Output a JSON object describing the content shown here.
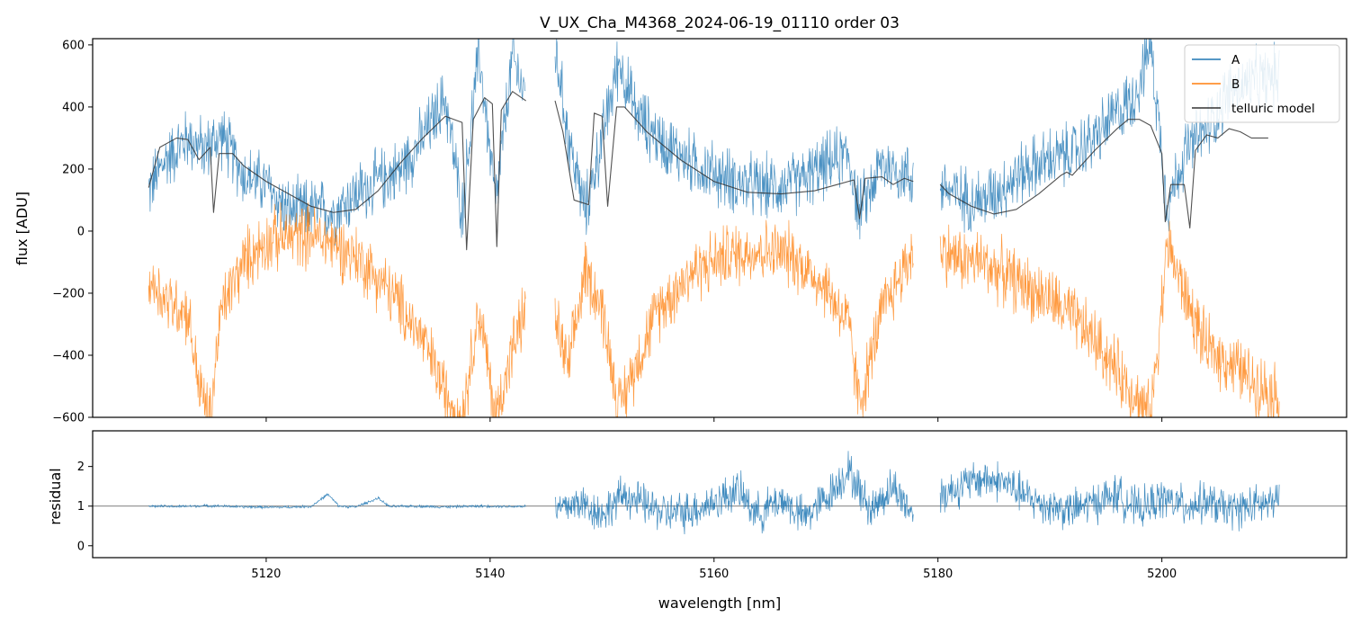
{
  "chart_data": [
    {
      "type": "line",
      "panel": "top",
      "title": "V_UX_Cha_M4368_2024-06-19_01110  order 03",
      "xlabel": "",
      "ylabel": "flux [ADU]",
      "xlim": [
        5104.5,
        5216.5
      ],
      "ylim": [
        -600,
        620
      ],
      "yticks": [
        -600,
        -400,
        -200,
        0,
        200,
        400,
        600
      ],
      "ytick_labels": [
        "−600",
        "−400",
        "−200",
        "0",
        "200",
        "400",
        "600"
      ],
      "xticks": [
        5120,
        5140,
        5160,
        5180,
        5200
      ],
      "legend": "top-right",
      "grid": false,
      "series": [
        {
          "name": "A",
          "color": "#1f77b4",
          "segments": [
            {
              "x": [
                5109.5,
                5111,
                5113,
                5114.5,
                5116,
                5118,
                5120,
                5122,
                5124,
                5126,
                5128,
                5130,
                5132,
                5134,
                5136,
                5137.5,
                5139,
                5140.5,
                5142,
                5143.2
              ],
              "y": [
                130,
                230,
                300,
                260,
                310,
                180,
                150,
                60,
                70,
                60,
                120,
                160,
                200,
                300,
                430,
                60,
                580,
                90,
                560,
                430
              ]
            },
            {
              "x": [
                5145.8,
                5147,
                5148.5,
                5150,
                5151.5,
                5153,
                5155,
                5158,
                5161,
                5164,
                5167,
                5170,
                5172,
                5173,
                5175,
                5177.8
              ],
              "y": [
                590,
                300,
                60,
                300,
                550,
                380,
                300,
                220,
                170,
                140,
                150,
                210,
                250,
                60,
                220,
                170
              ]
            },
            {
              "x": [
                5180.2,
                5182,
                5184,
                5186,
                5188,
                5190,
                5192,
                5194,
                5196,
                5197.5,
                5199,
                5200.5,
                5202,
                5204,
                5206,
                5208,
                5210.5
              ],
              "y": [
                150,
                110,
                100,
                150,
                200,
                230,
                250,
                300,
                380,
                430,
                600,
                80,
                250,
                330,
                450,
                480,
                500
              ]
            }
          ]
        },
        {
          "name": "B",
          "color": "#ff7f0e",
          "segments": [
            {
              "x": [
                5109.5,
                5111,
                5113,
                5114,
                5115,
                5116,
                5118,
                5120,
                5122,
                5124,
                5126,
                5128,
                5130,
                5132,
                5134,
                5136,
                5137.5,
                5139,
                5140.5,
                5142,
                5143.2
              ],
              "y": [
                -150,
                -220,
                -260,
                -500,
                -600,
                -250,
                -100,
                -30,
                -20,
                -10,
                -40,
                -80,
                -150,
                -240,
                -350,
                -520,
                -600,
                -250,
                -600,
                -380,
                -250
              ]
            },
            {
              "x": [
                5145.8,
                5147,
                5148.5,
                5150,
                5151.5,
                5153,
                5155,
                5158,
                5161,
                5164,
                5167,
                5170,
                5172,
                5173,
                5175,
                5177.8
              ],
              "y": [
                -280,
                -450,
                -120,
                -250,
                -570,
                -430,
                -250,
                -130,
                -80,
                -60,
                -80,
                -180,
                -300,
                -560,
                -260,
                -60
              ]
            },
            {
              "x": [
                5180.2,
                5182,
                5184,
                5186,
                5188,
                5190,
                5192,
                5194,
                5196,
                5197.5,
                5199,
                5200.5,
                5202,
                5204,
                5206,
                5208,
                5210.5
              ],
              "y": [
                -60,
                -90,
                -100,
                -140,
                -180,
                -220,
                -280,
                -350,
                -450,
                -520,
                -600,
                -40,
                -200,
                -380,
                -420,
                -480,
                -530
              ]
            }
          ]
        },
        {
          "name": "telluric model",
          "color": "#333333",
          "segments": [
            {
              "x": [
                5109.5,
                5110.5,
                5112,
                5113,
                5114,
                5115,
                5115.3,
                5115.8,
                5117,
                5118,
                5120,
                5122,
                5123.5,
                5124,
                5126,
                5128,
                5130,
                5132,
                5134,
                5136,
                5137.5,
                5137.9,
                5138.5,
                5139.5,
                5140.2,
                5140.6,
                5141,
                5142,
                5143.2
              ],
              "y": [
                140,
                270,
                300,
                295,
                230,
                270,
                60,
                250,
                250,
                210,
                160,
                120,
                90,
                80,
                60,
                70,
                130,
                220,
                300,
                370,
                350,
                -60,
                360,
                430,
                410,
                -50,
                390,
                450,
                420
              ]
            },
            {
              "x": [
                5145.8,
                5146.5,
                5147.5,
                5148.8,
                5149.3,
                5150,
                5150.5,
                5151.3,
                5152,
                5154,
                5157,
                5160,
                5163,
                5166,
                5169,
                5171,
                5172.5,
                5173,
                5173.5,
                5175,
                5176,
                5177,
                5177.8
              ],
              "y": [
                420,
                320,
                100,
                85,
                380,
                370,
                80,
                400,
                400,
                320,
                230,
                160,
                125,
                120,
                130,
                150,
                165,
                40,
                170,
                175,
                150,
                170,
                160
              ]
            },
            {
              "x": [
                5180.2,
                5181,
                5183,
                5185,
                5187,
                5189,
                5191,
                5191.5,
                5192,
                5194,
                5196,
                5197,
                5198,
                5199,
                5200,
                5200.3,
                5200.8,
                5202,
                5202.5,
                5203,
                5204,
                5205,
                5206,
                5207,
                5208,
                5209.5
              ],
              "y": [
                150,
                120,
                80,
                55,
                70,
                120,
                180,
                190,
                180,
                260,
                330,
                360,
                360,
                340,
                250,
                30,
                150,
                150,
                10,
                260,
                310,
                300,
                330,
                320,
                300,
                300
              ]
            }
          ]
        }
      ]
    },
    {
      "type": "line",
      "panel": "bottom",
      "title": "",
      "xlabel": "wavelength [nm]",
      "ylabel": "residual",
      "xlim": [
        5104.5,
        5216.5
      ],
      "ylim": [
        -0.3,
        2.9
      ],
      "yticks": [
        0,
        1,
        2
      ],
      "ytick_labels": [
        "0",
        "1",
        "2"
      ],
      "xticks": [
        5120,
        5140,
        5160,
        5180,
        5200
      ],
      "xtick_labels": [
        "5120",
        "5140",
        "5160",
        "5180",
        "5200"
      ],
      "reference_line": 1,
      "grid": false,
      "series": [
        {
          "name": "",
          "color": "#1f77b4",
          "segments": [
            {
              "x": [
                5109.5,
                5112,
                5115,
                5118,
                5121,
                5124,
                5125.5,
                5126.5,
                5128,
                5130,
                5131,
                5133,
                5136,
                5139,
                5142,
                5143.2
              ],
              "y": [
                1.0,
                0.99,
                1.01,
                0.98,
                0.97,
                0.99,
                1.3,
                1.0,
                0.98,
                1.2,
                0.99,
                1.0,
                0.98,
                1.0,
                0.99,
                1.0
              ]
            },
            {
              "x": [
                5145.8,
                5148,
                5150,
                5152,
                5154,
                5156,
                5158,
                5160,
                5162,
                5164,
                5166,
                5168,
                5170,
                5172,
                5174,
                5176,
                5177.8
              ],
              "y": [
                0.9,
                1.1,
                0.8,
                1.3,
                1.0,
                0.8,
                0.9,
                1.1,
                1.4,
                0.8,
                1.2,
                0.7,
                1.2,
                1.9,
                0.9,
                1.5,
                0.8
              ]
            },
            {
              "x": [
                5180.2,
                5182,
                5184,
                5186,
                5188,
                5190,
                5192,
                5194,
                5196,
                5198,
                5200,
                5202,
                5204,
                5206,
                5208,
                5210.5
              ],
              "y": [
                1.3,
                1.5,
                1.7,
                1.6,
                1.2,
                1.0,
                0.9,
                1.1,
                1.3,
                0.9,
                1.2,
                1.0,
                1.1,
                0.9,
                1.0,
                1.1
              ]
            }
          ]
        }
      ]
    }
  ]
}
